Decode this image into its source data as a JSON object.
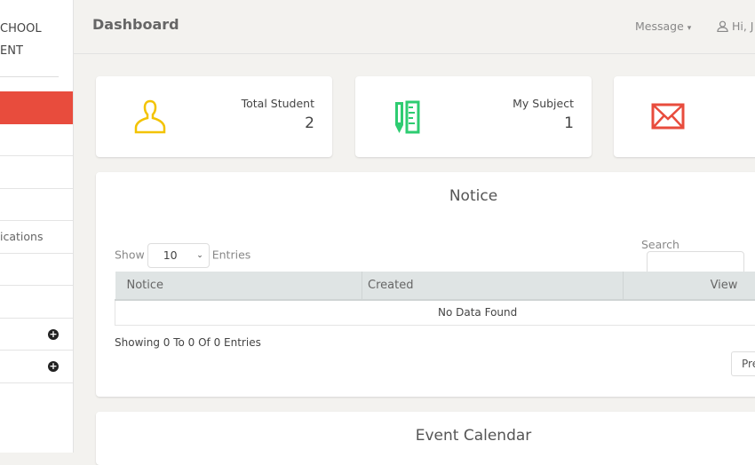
{
  "sidebar": {
    "brand_line1": "CHOOL",
    "brand_line2": "ENT",
    "items": [
      {
        "label": ""
      },
      {
        "label": ""
      },
      {
        "label": ""
      },
      {
        "label": ""
      },
      {
        "label": "ications"
      },
      {
        "label": ""
      },
      {
        "label": ""
      },
      {
        "label": "",
        "expand": true
      },
      {
        "label": "",
        "expand": true
      }
    ],
    "accent": "#e84c3d"
  },
  "header": {
    "title": "Dashboard",
    "message": "Message",
    "caret": "▾",
    "greeting": "Hi, J"
  },
  "cards": [
    {
      "label": "Total Student",
      "value": "2",
      "icon": "user-icon",
      "color": "#f3c300"
    },
    {
      "label": "My Subject",
      "value": "1",
      "icon": "pencil-ruler-icon",
      "color": "#2ecc71"
    },
    {
      "icon": "envelope-icon",
      "color": "#e84c3d"
    }
  ],
  "notice": {
    "title": "Notice",
    "show": "Show",
    "entries_value": "10",
    "entries": "Entries",
    "search": "Search",
    "columns": [
      "Notice",
      "Created",
      "View"
    ],
    "empty": "No Data Found",
    "info": "Showing 0 To 0 Of 0 Entries",
    "prev": "Pre"
  },
  "calendar": {
    "title": "Event Calendar"
  }
}
